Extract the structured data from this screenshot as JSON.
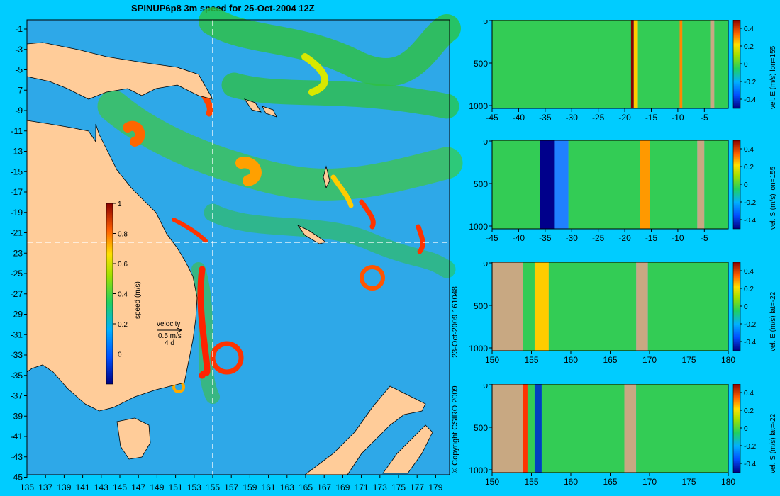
{
  "title": "SPINUP6p8 3m speed for 25-Oct-2004 12Z",
  "copyright": "© Copyright CSIRO 2009",
  "timestamp": "23-Oct-2009 161048",
  "map": {
    "lat_ticks": [
      "-1",
      "-3",
      "-5",
      "-7",
      "-9",
      "-11",
      "-13",
      "-15",
      "-17",
      "-19",
      "-21",
      "-23",
      "-25",
      "-27",
      "-29",
      "-31",
      "-33",
      "-35",
      "-37",
      "-39",
      "-41",
      "-43",
      "-45"
    ],
    "lon_ticks": [
      "135",
      "137",
      "139",
      "141",
      "143",
      "145",
      "147",
      "149",
      "151",
      "153",
      "155",
      "157",
      "159",
      "161",
      "163",
      "165",
      "167",
      "169",
      "171",
      "173",
      "175",
      "177",
      "179"
    ],
    "colorbar": {
      "label": "speed (m/s)",
      "ticks": [
        "1",
        "0.8",
        "0.6",
        "0.4",
        "0.2",
        "0"
      ],
      "range": [
        -0.2,
        1
      ]
    },
    "velocity_key": {
      "title": "velocity",
      "speed": "0.5 m/s",
      "duration": "4 d"
    },
    "colors": {
      "ocean": "#2ea8e8",
      "land": "#ffcc99",
      "background": "#00ccff"
    }
  },
  "sections": [
    {
      "label": "vel. E (m/s) lon=155",
      "x_ticks": [
        "-45",
        "-40",
        "-35",
        "-30",
        "-25",
        "-20",
        "-15",
        "-10",
        "-5"
      ],
      "y_ticks": [
        "0",
        "500",
        "1000"
      ],
      "cb_ticks": [
        "0.4",
        "0.2",
        "0",
        "-0.2",
        "-0.4"
      ]
    },
    {
      "label": "vel. S (m/s) lon=155",
      "x_ticks": [
        "-45",
        "-40",
        "-35",
        "-30",
        "-25",
        "-20",
        "-15",
        "-10",
        "-5"
      ],
      "y_ticks": [
        "0",
        "500",
        "1000"
      ],
      "cb_ticks": [
        "0.4",
        "0.2",
        "0",
        "-0.2",
        "-0.4"
      ]
    },
    {
      "label": "vel. E (m/s) lat=-22",
      "x_ticks": [
        "150",
        "155",
        "160",
        "165",
        "170",
        "175",
        "180"
      ],
      "y_ticks": [
        "0",
        "500",
        "1000"
      ],
      "cb_ticks": [
        "0.4",
        "0.2",
        "0",
        "-0.2",
        "-0.4"
      ]
    },
    {
      "label": "vel. S (m/s) lat=-22",
      "x_ticks": [
        "150",
        "155",
        "160",
        "165",
        "170",
        "175",
        "180"
      ],
      "y_ticks": [
        "0",
        "500",
        "1000"
      ],
      "cb_ticks": [
        "0.4",
        "0.2",
        "0",
        "-0.2",
        "-0.4"
      ]
    }
  ]
}
